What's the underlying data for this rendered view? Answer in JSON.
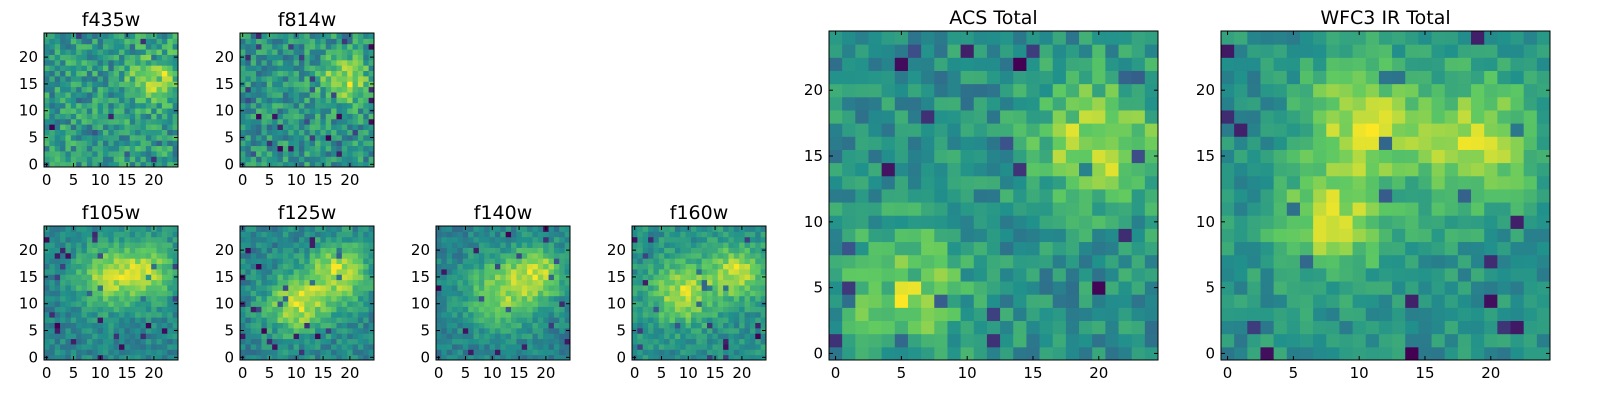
{
  "chart_data": [
    {
      "type": "heatmap",
      "title": "f435w",
      "xticks": [
        "0",
        "5",
        "10",
        "15",
        "20"
      ],
      "yticks": [
        "0",
        "5",
        "10",
        "15",
        "20"
      ],
      "xlim": [
        -0.5,
        24.5
      ],
      "ylim": [
        -0.5,
        24.5
      ],
      "grid_size": [
        25,
        25
      ],
      "colormap": [
        "#440154",
        "#3b528b",
        "#21918c",
        "#5ec962",
        "#fde725"
      ],
      "hotspots": [
        [
          20,
          16,
          3.0
        ]
      ],
      "noise_seed": 11,
      "noise_amplitude": 0.55
    },
    {
      "type": "heatmap",
      "title": "f814w",
      "xticks": [
        "0",
        "5",
        "10",
        "15",
        "20"
      ],
      "yticks": [
        "0",
        "5",
        "10",
        "15",
        "20"
      ],
      "xlim": [
        -0.5,
        24.5
      ],
      "ylim": [
        -0.5,
        24.5
      ],
      "grid_size": [
        25,
        25
      ],
      "colormap": [
        "#440154",
        "#3b528b",
        "#21918c",
        "#5ec962",
        "#fde725"
      ],
      "hotspots": [
        [
          19,
          16,
          3.0
        ]
      ],
      "noise_seed": 23,
      "noise_amplitude": 0.55
    },
    {
      "type": "heatmap",
      "title": "f105w",
      "xticks": [
        "0",
        "5",
        "10",
        "15",
        "20"
      ],
      "yticks": [
        "0",
        "5",
        "10",
        "15",
        "20"
      ],
      "xlim": [
        -0.5,
        24.5
      ],
      "ylim": [
        -0.5,
        24.5
      ],
      "grid_size": [
        25,
        25
      ],
      "colormap": [
        "#440154",
        "#3b528b",
        "#21918c",
        "#5ec962",
        "#fde725"
      ],
      "hotspots": [
        [
          19,
          16,
          4.0
        ],
        [
          11,
          15,
          4.0
        ]
      ],
      "noise_seed": 37,
      "noise_amplitude": 0.3
    },
    {
      "type": "heatmap",
      "title": "f125w",
      "xticks": [
        "0",
        "5",
        "10",
        "15",
        "20"
      ],
      "yticks": [
        "0",
        "5",
        "10",
        "15",
        "20"
      ],
      "xlim": [
        -0.5,
        24.5
      ],
      "ylim": [
        -0.5,
        24.5
      ],
      "grid_size": [
        25,
        25
      ],
      "colormap": [
        "#440154",
        "#3b528b",
        "#21918c",
        "#5ec962",
        "#fde725"
      ],
      "hotspots": [
        [
          18,
          16,
          4.0
        ],
        [
          10,
          10,
          4.0
        ]
      ],
      "noise_seed": 41,
      "noise_amplitude": 0.3
    },
    {
      "type": "heatmap",
      "title": "f140w",
      "xticks": [
        "0",
        "5",
        "10",
        "15",
        "20"
      ],
      "yticks": [
        "0",
        "5",
        "10",
        "15",
        "20"
      ],
      "xlim": [
        -0.5,
        24.5
      ],
      "ylim": [
        -0.5,
        24.5
      ],
      "grid_size": [
        25,
        25
      ],
      "colormap": [
        "#440154",
        "#3b528b",
        "#21918c",
        "#5ec962",
        "#fde725"
      ],
      "hotspots": [
        [
          12,
          12,
          5.0
        ],
        [
          19,
          16,
          3.5
        ]
      ],
      "noise_seed": 53,
      "noise_amplitude": 0.3
    },
    {
      "type": "heatmap",
      "title": "f160w",
      "xticks": [
        "0",
        "5",
        "10",
        "15",
        "20"
      ],
      "yticks": [
        "0",
        "5",
        "10",
        "15",
        "20"
      ],
      "xlim": [
        -0.5,
        24.5
      ],
      "ylim": [
        -0.5,
        24.5
      ],
      "grid_size": [
        25,
        25
      ],
      "colormap": [
        "#440154",
        "#3b528b",
        "#21918c",
        "#5ec962",
        "#fde725"
      ],
      "hotspots": [
        [
          9,
          12,
          4.0
        ],
        [
          19,
          16,
          3.5
        ]
      ],
      "noise_seed": 67,
      "noise_amplitude": 0.3
    },
    {
      "type": "heatmap",
      "title": "ACS Total",
      "xticks": [
        "0",
        "5",
        "10",
        "15",
        "20"
      ],
      "yticks": [
        "0",
        "5",
        "10",
        "15",
        "20"
      ],
      "xlim": [
        -0.5,
        24.5
      ],
      "ylim": [
        -0.5,
        24.5
      ],
      "grid_size": [
        25,
        25
      ],
      "colormap": [
        "#440154",
        "#3b528b",
        "#21918c",
        "#5ec962",
        "#fde725"
      ],
      "hotspots": [
        [
          20,
          16,
          3.5
        ],
        [
          5,
          5,
          3.0
        ]
      ],
      "noise_seed": 79,
      "noise_amplitude": 0.4
    },
    {
      "type": "heatmap",
      "title": "WFC3 IR Total",
      "xticks": [
        "0",
        "5",
        "10",
        "15",
        "20"
      ],
      "yticks": [
        "0",
        "5",
        "10",
        "15",
        "20"
      ],
      "xlim": [
        -0.5,
        24.5
      ],
      "ylim": [
        -0.5,
        24.5
      ],
      "grid_size": [
        25,
        25
      ],
      "colormap": [
        "#440154",
        "#3b528b",
        "#21918c",
        "#5ec962",
        "#fde725"
      ],
      "hotspots": [
        [
          19,
          16,
          3.5
        ],
        [
          10,
          18,
          3.0
        ],
        [
          8,
          10,
          3.0
        ]
      ],
      "noise_seed": 97,
      "noise_amplitude": 0.3
    }
  ]
}
